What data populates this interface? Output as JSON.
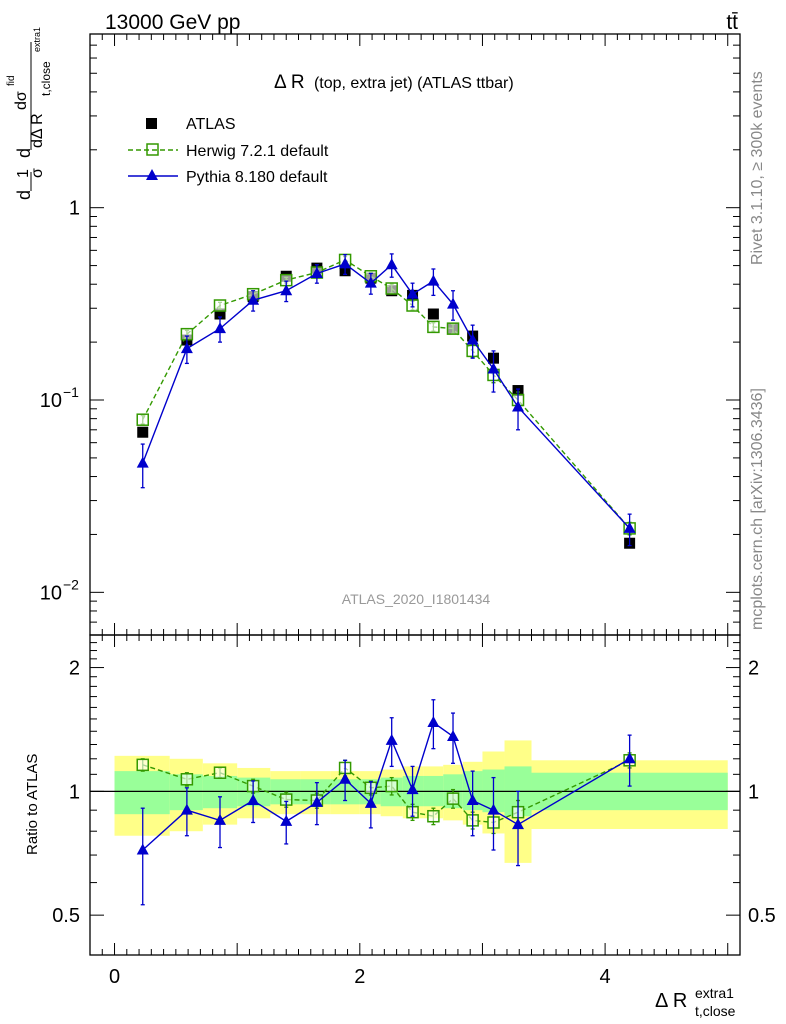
{
  "header": {
    "energy_label": "13000 GeV pp",
    "process_label": "tt̄"
  },
  "side_labels": {
    "rivet": "Rivet 3.1.10, ≥ 300k events",
    "mcplots": "mcplots.cern.ch [arXiv:1306.3436]"
  },
  "chart_data": {
    "type": "scatter",
    "title_main": "Δ R",
    "title_paren": "(top, extra jet) (ATLAS ttbar)",
    "analysis_label": "ATLAS_2020_I1801434",
    "xlabel_main": "Δ R",
    "xlabel_sup": "extra1",
    "xlabel_sub": "t,close",
    "ylabel_main": "d",
    "ylabel_ratio": "Ratio to ATLAS",
    "ylabel_parts": {
      "frac1_num": "1",
      "frac1_den": "σ",
      "d": "d",
      "d2": "d",
      "dsigma": "dσ",
      "sigma_sup": "fid",
      "den_main": "dΔ R",
      "den_sub": "t,close",
      "den_subsup": "extra1"
    },
    "x_range": [
      -0.2,
      5.1
    ],
    "y_range_log": [
      0.006,
      8.0
    ],
    "ratio_range": [
      0.4,
      2.4
    ],
    "x_ticks": [
      "0",
      "2",
      "4"
    ],
    "y_ticks": [
      "1",
      "10",
      "10"
    ],
    "y_tick_exps": [
      "",
      "−1",
      "−2"
    ],
    "ratio_ticks": [
      "0.5",
      "1",
      "2"
    ],
    "legend": {
      "position": "top-left",
      "entries": [
        "ATLAS",
        "Herwig 7.2.1 default",
        "Pythia 8.180 default"
      ]
    },
    "colors": {
      "data": "#000000",
      "herwig": "#339900",
      "pythia": "#0000cc",
      "band_outer": "#ffff88",
      "band_inner": "#99ff99"
    },
    "bins": [
      {
        "lo": 0.0,
        "hi": 0.45,
        "inner": [
          0.88,
          1.12
        ],
        "outer": [
          0.78,
          1.22
        ]
      },
      {
        "lo": 0.45,
        "hi": 0.72,
        "inner": [
          0.9,
          1.1
        ],
        "outer": [
          0.8,
          1.2
        ]
      },
      {
        "lo": 0.72,
        "hi": 1.0,
        "inner": [
          0.91,
          1.09
        ],
        "outer": [
          0.83,
          1.17
        ]
      },
      {
        "lo": 1.0,
        "hi": 1.27,
        "inner": [
          0.92,
          1.08
        ],
        "outer": [
          0.86,
          1.14
        ]
      },
      {
        "lo": 1.27,
        "hi": 1.52,
        "inner": [
          0.93,
          1.07
        ],
        "outer": [
          0.88,
          1.12
        ]
      },
      {
        "lo": 1.52,
        "hi": 1.76,
        "inner": [
          0.93,
          1.07
        ],
        "outer": [
          0.88,
          1.12
        ]
      },
      {
        "lo": 1.76,
        "hi": 2.0,
        "inner": [
          0.93,
          1.07
        ],
        "outer": [
          0.88,
          1.12
        ]
      },
      {
        "lo": 2.0,
        "hi": 2.17,
        "inner": [
          0.93,
          1.07
        ],
        "outer": [
          0.88,
          1.12
        ]
      },
      {
        "lo": 2.17,
        "hi": 2.35,
        "inner": [
          0.92,
          1.08
        ],
        "outer": [
          0.87,
          1.13
        ]
      },
      {
        "lo": 2.35,
        "hi": 2.52,
        "inner": [
          0.92,
          1.09
        ],
        "outer": [
          0.86,
          1.15
        ]
      },
      {
        "lo": 2.52,
        "hi": 2.68,
        "inner": [
          0.92,
          1.09
        ],
        "outer": [
          0.86,
          1.15
        ]
      },
      {
        "lo": 2.68,
        "hi": 2.84,
        "inner": [
          0.91,
          1.1
        ],
        "outer": [
          0.85,
          1.16
        ]
      },
      {
        "lo": 2.84,
        "hi": 3.0,
        "inner": [
          0.9,
          1.12
        ],
        "outer": [
          0.83,
          1.18
        ]
      },
      {
        "lo": 3.0,
        "hi": 3.18,
        "inner": [
          0.89,
          1.13
        ],
        "outer": [
          0.79,
          1.25
        ]
      },
      {
        "lo": 3.18,
        "hi": 3.4,
        "inner": [
          0.87,
          1.15
        ],
        "outer": [
          0.67,
          1.33
        ]
      },
      {
        "lo": 3.4,
        "hi": 5.0,
        "inner": [
          0.9,
          1.11
        ],
        "outer": [
          0.81,
          1.19
        ]
      }
    ],
    "atlas": {
      "x": [
        0.23,
        0.59,
        0.86,
        1.13,
        1.4,
        1.65,
        1.88,
        2.09,
        2.26,
        2.43,
        2.6,
        2.76,
        2.92,
        3.09,
        3.29,
        4.2
      ],
      "y": [
        0.068,
        0.205,
        0.28,
        0.345,
        0.44,
        0.485,
        0.47,
        0.43,
        0.37,
        0.35,
        0.28,
        0.235,
        0.215,
        0.165,
        0.112,
        0.018
      ]
    },
    "herwig": {
      "x": [
        0.23,
        0.59,
        0.86,
        1.13,
        1.4,
        1.65,
        1.88,
        2.09,
        2.26,
        2.43,
        2.6,
        2.76,
        2.92,
        3.09,
        3.29,
        4.2
      ],
      "y": [
        0.079,
        0.22,
        0.31,
        0.355,
        0.42,
        0.46,
        0.535,
        0.44,
        0.38,
        0.31,
        0.24,
        0.235,
        0.18,
        0.135,
        0.1,
        0.0215
      ],
      "err": [
        0.004,
        0.01,
        0.012,
        0.012,
        0.014,
        0.016,
        0.022,
        0.02,
        0.02,
        0.016,
        0.012,
        0.013,
        0.014,
        0.012,
        0.01,
        0.0016
      ],
      "ratio": [
        1.16,
        1.07,
        1.11,
        1.03,
        0.955,
        0.95,
        1.14,
        1.02,
        1.03,
        0.89,
        0.87,
        0.96,
        0.85,
        0.84,
        0.89,
        1.19
      ],
      "ratio_err": [
        0.04,
        0.04,
        0.03,
        0.04,
        0.04,
        0.04,
        0.05,
        0.04,
        0.05,
        0.04,
        0.04,
        0.05,
        0.04,
        0.05,
        0.06,
        0.05
      ]
    },
    "pythia": {
      "x": [
        0.23,
        0.59,
        0.86,
        1.13,
        1.4,
        1.65,
        1.88,
        2.09,
        2.26,
        2.43,
        2.6,
        2.76,
        2.92,
        3.09,
        3.29,
        4.2
      ],
      "y": [
        0.047,
        0.185,
        0.235,
        0.33,
        0.37,
        0.455,
        0.51,
        0.405,
        0.505,
        0.355,
        0.415,
        0.315,
        0.205,
        0.145,
        0.092,
        0.0215
      ],
      "err": [
        0.012,
        0.03,
        0.035,
        0.04,
        0.045,
        0.05,
        0.06,
        0.05,
        0.07,
        0.05,
        0.065,
        0.055,
        0.04,
        0.035,
        0.022,
        0.004
      ],
      "ratio": [
        0.72,
        0.9,
        0.85,
        0.95,
        0.845,
        0.94,
        1.07,
        0.935,
        1.33,
        1.01,
        1.47,
        1.36,
        0.95,
        0.9,
        0.83,
        1.2
      ],
      "ratio_err": [
        0.19,
        0.12,
        0.12,
        0.11,
        0.1,
        0.11,
        0.12,
        0.12,
        0.18,
        0.14,
        0.2,
        0.19,
        0.17,
        0.18,
        0.17,
        0.17
      ]
    }
  }
}
